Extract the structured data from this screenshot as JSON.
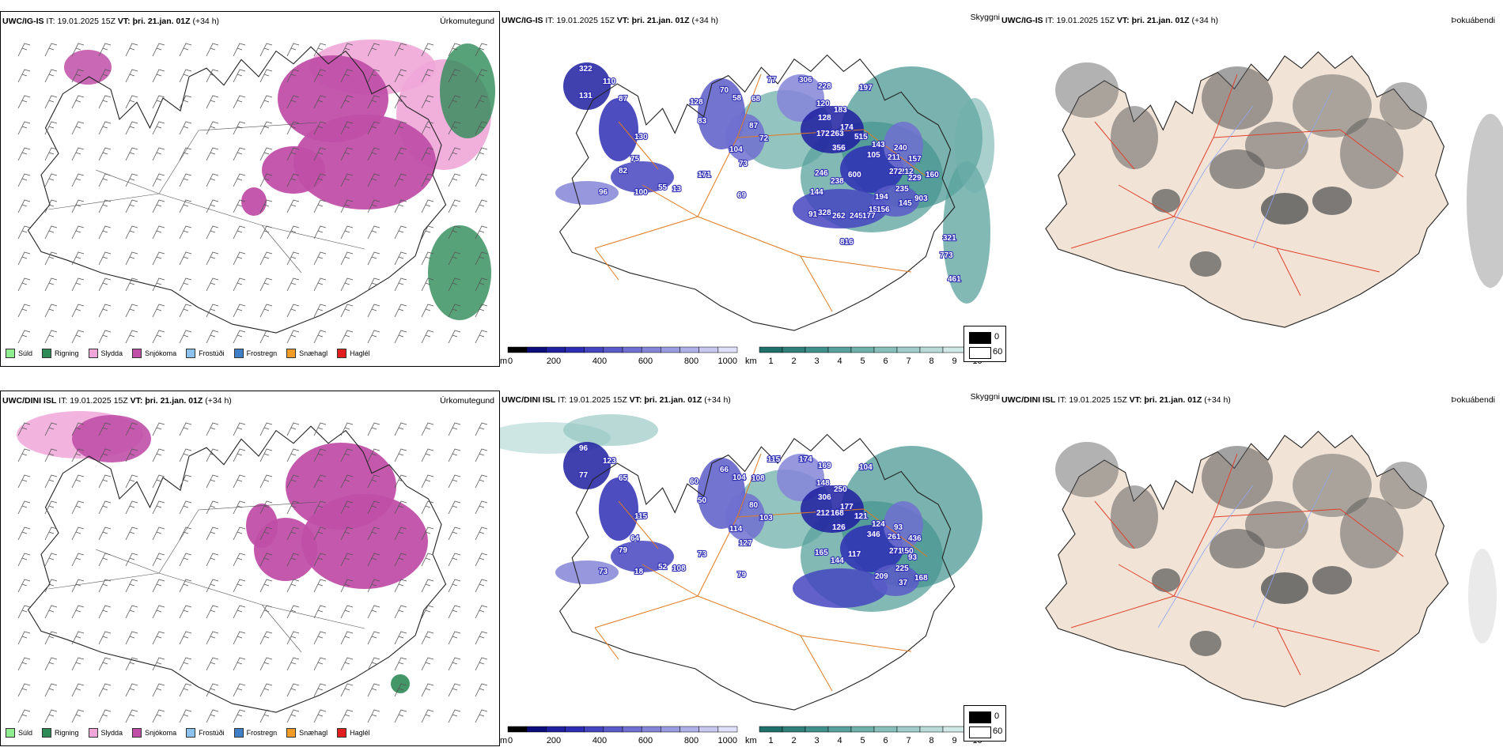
{
  "rows": [
    {
      "model": "UWC/IG-IS",
      "it_label": "IT:",
      "it_value": "19.01.2025 15Z",
      "vt_label": "VT:",
      "vt_value": "þri. 21.jan. 01Z",
      "lead": "(+34 h)",
      "peaks": [
        "322",
        "110",
        "87",
        "131",
        "130",
        "75",
        "82",
        "96",
        "100",
        "55",
        "13",
        "171",
        "128",
        "83",
        "69",
        "70",
        "58",
        "68",
        "87",
        "104",
        "73",
        "72",
        "77",
        "306",
        "228",
        "120",
        "128",
        "172",
        "183",
        "174",
        "197",
        "263",
        "356",
        "515",
        "143",
        "240",
        "211",
        "212",
        "157",
        "105",
        "246",
        "238",
        "600",
        "194",
        "272",
        "235",
        "229",
        "903",
        "145",
        "160",
        "144",
        "328",
        "262",
        "245",
        "177",
        "153",
        "156",
        "91",
        "816",
        "321",
        "773",
        "461"
      ]
    },
    {
      "model": "UWC/DINI ISL",
      "it_label": "IT:",
      "it_value": "19.01.2025 15Z",
      "vt_label": "VT:",
      "vt_value": "þri. 21.jan. 01Z",
      "lead": "(+34 h)",
      "peaks": [
        "96",
        "123",
        "65",
        "77",
        "115",
        "64",
        "79",
        "73",
        "18",
        "52",
        "108",
        "73",
        "60",
        "50",
        "79",
        "66",
        "104",
        "108",
        "80",
        "114",
        "127",
        "103",
        "115",
        "174",
        "169",
        "148",
        "306",
        "212",
        "250",
        "177",
        "104",
        "168",
        "126",
        "121",
        "124",
        "93",
        "261",
        "150",
        "436",
        "346",
        "165",
        "144",
        "117",
        "209",
        "271",
        "225",
        "93",
        "168",
        "37"
      ]
    }
  ],
  "panel_types": {
    "precip": "Úrkomutegund",
    "cloud": "Skyggni",
    "cover": "Þokuábendi"
  },
  "precip_legend": [
    {
      "label": "Súld",
      "color": "#90ee90"
    },
    {
      "label": "Rigning",
      "color": "#2e8b57"
    },
    {
      "label": "Slydda",
      "color": "#f0a6d8"
    },
    {
      "label": "Snjókoma",
      "color": "#c04fa8"
    },
    {
      "label": "Frostúði",
      "color": "#8ec2ee"
    },
    {
      "label": "Frostregn",
      "color": "#3f7fc8"
    },
    {
      "label": "Snæhagl",
      "color": "#f29b26"
    },
    {
      "label": "Haglél",
      "color": "#e11d1d"
    }
  ],
  "cloud_base_bar": {
    "unit": "m",
    "ticks": [
      "0",
      "200",
      "400",
      "600",
      "800",
      "1000"
    ],
    "colors": [
      "#000000",
      "#0d0d7a",
      "#1f1fa0",
      "#2e2eb4",
      "#4545c0",
      "#5a5ac8",
      "#7070d0",
      "#8585d8",
      "#9b9be0",
      "#b0b0e8",
      "#c7c7f0",
      "#e0e0f8"
    ]
  },
  "visibility_bar": {
    "unit": "km",
    "ticks": [
      "1",
      "2",
      "3",
      "4",
      "5",
      "6",
      "7",
      "8",
      "9",
      "10"
    ],
    "colors": [
      "#1f6f6a",
      "#2f807b",
      "#40918c",
      "#58a19c",
      "#70b0ab",
      "#88bfba",
      "#a0cdc9",
      "#b8dbd8",
      "#d0e8e6",
      "#e8f4f3"
    ]
  },
  "cover_legend": {
    "low": "0",
    "high": "60",
    "low_color": "#000000",
    "high_color": "#ffffff"
  },
  "colors": {
    "snow": "#c04fa8",
    "sleet": "#f0a6d8",
    "rain": "#2e8b57",
    "coast": "#222222",
    "roads_orange": "#e07b22",
    "roads_red": "#e0402a",
    "land_beige": "#f1e3d6",
    "low_cloud": "#2e2eb4"
  }
}
